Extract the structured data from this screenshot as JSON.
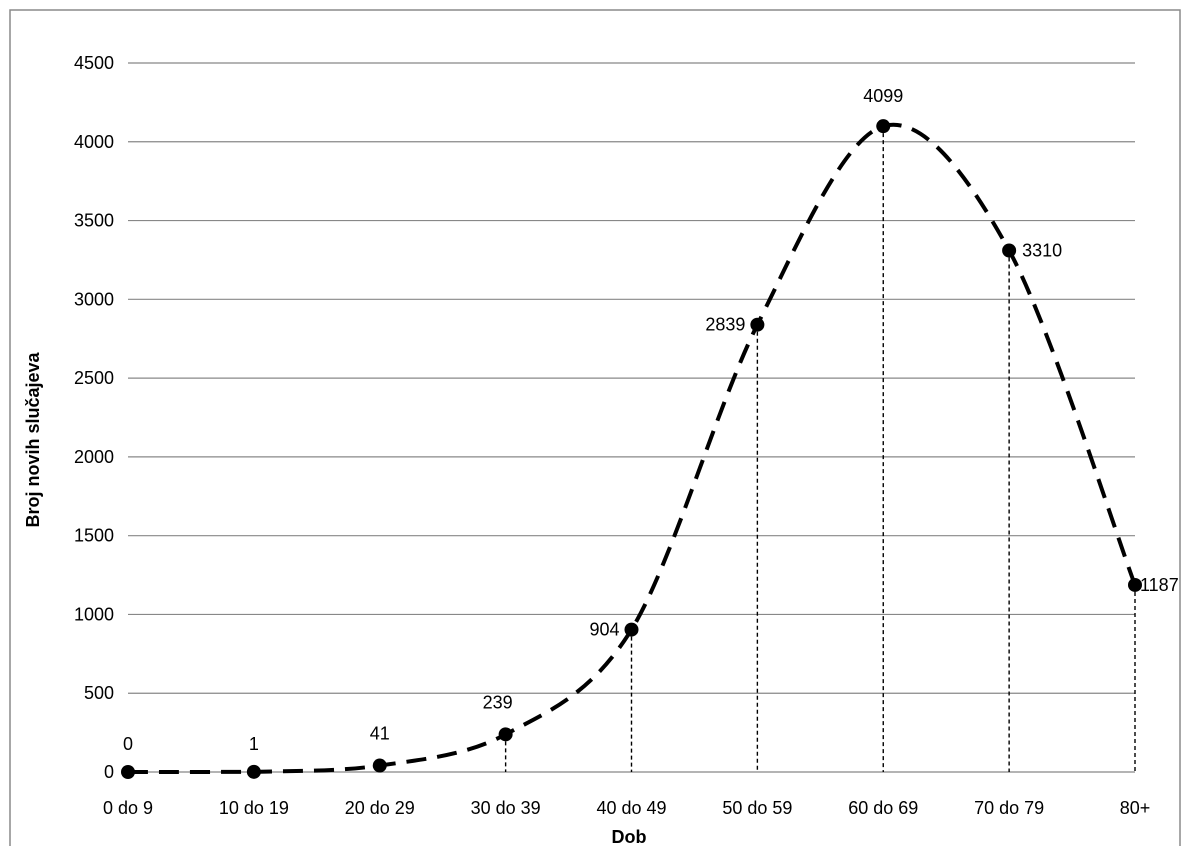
{
  "chart_data": {
    "type": "line",
    "title": "",
    "xlabel": "Dob",
    "ylabel": "Broj novih slučajeva",
    "categories": [
      "0 do 9",
      "10 do 19",
      "20 do 29",
      "30 do 39",
      "40 do 49",
      "50 do 59",
      "60 do 69",
      "70 do 79",
      "80+"
    ],
    "series": [
      {
        "values": [
          0,
          1,
          41,
          239,
          904,
          2839,
          4099,
          3310,
          1187
        ]
      }
    ],
    "data_labels": [
      "0",
      "1",
      "41",
      "239",
      "904",
      "2839",
      "4099",
      "3310",
      "1187"
    ],
    "y_ticks": [
      0,
      500,
      1000,
      1500,
      2000,
      2500,
      3000,
      3500,
      4000,
      4500
    ],
    "y_tick_labels": [
      "0",
      "500",
      "1000",
      "1500",
      "2000",
      "2500",
      "3000",
      "3500",
      "4000",
      "4500"
    ],
    "ylim": [
      0,
      4500
    ],
    "grid": true,
    "line_style": "dashed",
    "marker": "circle",
    "drop_lines": true,
    "legend": "none",
    "colors": {
      "line": "#000000",
      "grid": "#888888",
      "marker": "#000000"
    }
  }
}
